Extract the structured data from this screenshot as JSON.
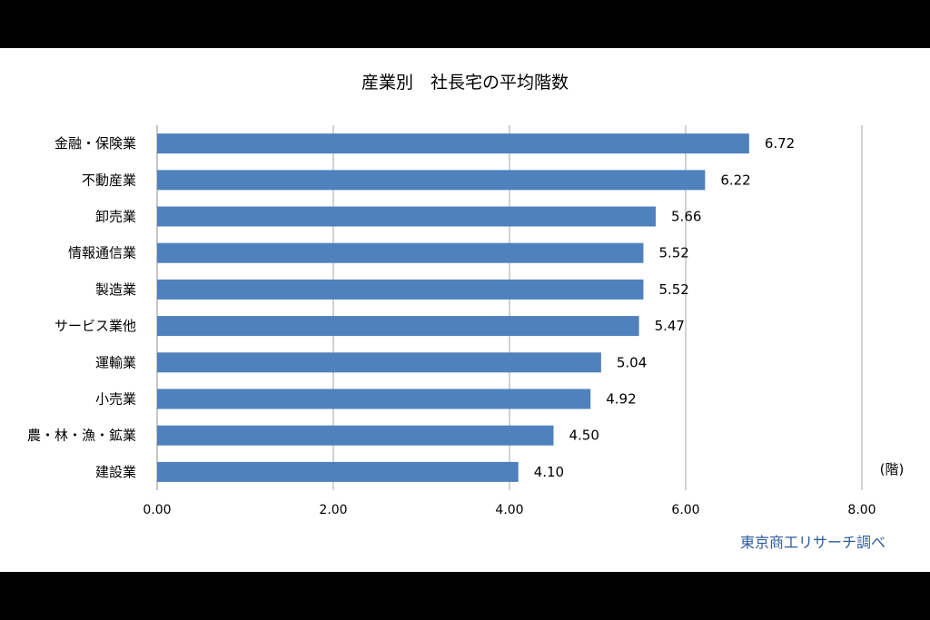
{
  "chart_data": {
    "type": "bar",
    "orientation": "horizontal",
    "title": "産業別　社長宅の平均階数",
    "categories": [
      "金融・保険業",
      "不動産業",
      "卸売業",
      "情報通信業",
      "製造業",
      "サービス業他",
      "運輸業",
      "小売業",
      "農・林・漁・鉱業",
      "建設業"
    ],
    "values": [
      6.72,
      6.22,
      5.66,
      5.52,
      5.52,
      5.47,
      5.04,
      4.92,
      4.5,
      4.1
    ],
    "value_labels": [
      "6.72",
      "6.22",
      "5.66",
      "5.52",
      "5.52",
      "5.47",
      "5.04",
      "4.92",
      "4.50",
      "4.10"
    ],
    "xlim": [
      0,
      8
    ],
    "x_ticks": [
      "0.00",
      "2.00",
      "4.00",
      "6.00",
      "8.00"
    ],
    "unit_label": "(階)",
    "grid": "vertical",
    "bar_color": "#4f81bd",
    "source": "東京商工リサーチ調べ",
    "source_color": "#2e5b9a"
  }
}
